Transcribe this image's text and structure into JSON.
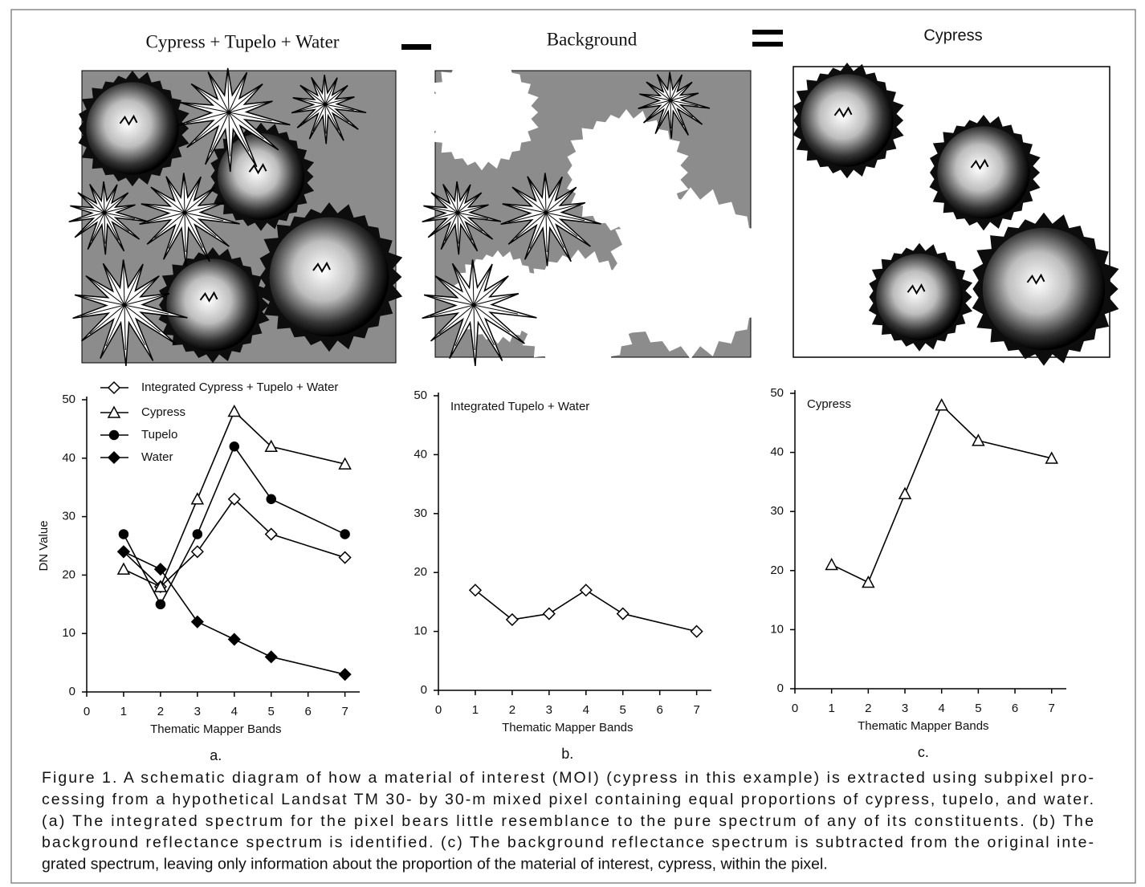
{
  "figure": {
    "panel_titles": [
      "Cypress + Tupelo + Water",
      "Background",
      "Cypress"
    ]
  },
  "chart_data": [
    {
      "type": "line",
      "panel_label": "a.",
      "ylabel": "DN Value",
      "xlabel": "Thematic Mapper Bands",
      "xlim": [
        0,
        7.4
      ],
      "xticks": [
        0,
        1,
        2,
        3,
        4,
        5,
        6,
        7
      ],
      "ylim": [
        0,
        50
      ],
      "yticks": [
        0,
        10,
        20,
        30,
        40,
        50
      ],
      "legend": "upper left",
      "legend_markers": true,
      "series": [
        {
          "name": "Integrated Cypress + Tupelo + Water",
          "color": "#000000",
          "marker": "diamond-open",
          "x": [
            1,
            2,
            3,
            4,
            5,
            7
          ],
          "values": [
            24,
            18,
            24,
            33,
            27,
            23
          ]
        },
        {
          "name": "Cypress",
          "color": "#000000",
          "marker": "triangle-open",
          "x": [
            1,
            2,
            3,
            4,
            5,
            7
          ],
          "values": [
            21,
            18,
            33,
            48,
            42,
            39
          ]
        },
        {
          "name": "Tupelo",
          "color": "#000000",
          "marker": "circle",
          "x": [
            1,
            2,
            3,
            4,
            5,
            7
          ],
          "values": [
            27,
            15,
            27,
            42,
            33,
            27
          ]
        },
        {
          "name": "Water",
          "color": "#000000",
          "marker": "diamond",
          "x": [
            1,
            2,
            3,
            4,
            5,
            7
          ],
          "values": [
            24,
            21,
            12,
            9,
            6,
            3
          ]
        }
      ]
    },
    {
      "type": "line",
      "panel_label": "b.",
      "xlabel": "Thematic Mapper Bands",
      "xlim": [
        0,
        7.4
      ],
      "xticks": [
        0,
        1,
        2,
        3,
        4,
        5,
        6,
        7
      ],
      "ylim": [
        0,
        50
      ],
      "yticks": [
        0,
        10,
        20,
        30,
        40,
        50
      ],
      "legend": "upper left",
      "legend_markers": false,
      "series": [
        {
          "name": "Integrated Tupelo + Water",
          "color": "#000000",
          "marker": "diamond-open",
          "x": [
            1,
            2,
            3,
            4,
            5,
            7
          ],
          "values": [
            17,
            12,
            13,
            17,
            13,
            10
          ]
        }
      ]
    },
    {
      "type": "line",
      "panel_label": "c.",
      "xlabel": "Thematic Mapper Bands",
      "xlim": [
        0,
        7.4
      ],
      "xticks": [
        0,
        1,
        2,
        3,
        4,
        5,
        6,
        7
      ],
      "ylim": [
        0,
        50
      ],
      "yticks": [
        0,
        10,
        20,
        30,
        40,
        50
      ],
      "legend": "upper left",
      "legend_markers": false,
      "series": [
        {
          "name": "Cypress",
          "color": "#000000",
          "marker": "triangle-open",
          "x": [
            1,
            2,
            3,
            4,
            5,
            7
          ],
          "values": [
            21,
            18,
            33,
            48,
            42,
            39
          ]
        }
      ]
    }
  ],
  "caption": {
    "lines": [
      "Figure 1. A schematic diagram of how a material of interest (MOI) (cypress in this example) is extracted using subpixel pro-",
      "cessing from a hypothetical Landsat TM 30- by 30-m mixed pixel containing equal proportions of cypress, tupelo, and water.",
      "(a) The integrated spectrum for the pixel bears little resemblance to the pure spectrum of any of its constituents. (b) The",
      "background reflectance spectrum is identified. (c) The background reflectance spectrum is subtracted from the original inte-",
      "grated spectrum, leaving only information about the proportion of the material of interest, cypress, within the pixel."
    ]
  }
}
